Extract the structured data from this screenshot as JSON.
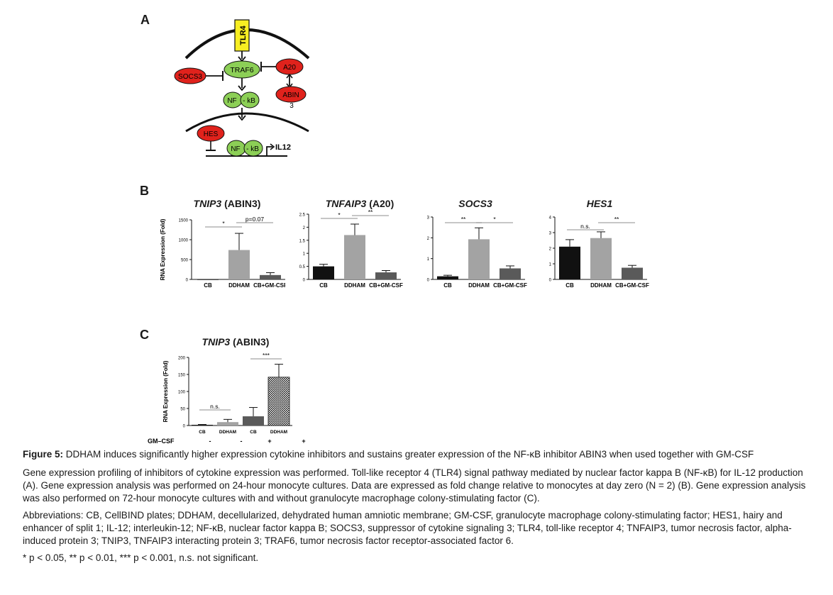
{
  "panels": {
    "a": "A",
    "b": "B",
    "c": "C"
  },
  "pathway": {
    "tlr4": "TLR4",
    "traf6": "TRAF6",
    "socs3": "SOCS3",
    "a20": "A20",
    "abin": "ABIN",
    "abin_num": "3",
    "nfkb_left": "NF",
    "nfkb_right": "- kB",
    "hes": "HES",
    "il12": "IL12"
  },
  "colors": {
    "receptor": "#f7ee22",
    "activator": "#8ccf56",
    "inhibitor": "#e0221c",
    "bar_black": "#111111",
    "bar_light": "#a3a3a3",
    "bar_dark": "#5a5a5a"
  },
  "chart_data": [
    {
      "type": "bar",
      "title_gene": "TNIP3",
      "title_rest": " (ABIN3)",
      "ylabel": "RNA Expression (Fold)",
      "categories": [
        "CB",
        "DDHAM",
        "CB+GM-CSF"
      ],
      "values": [
        1,
        740,
        110
      ],
      "errors": [
        0,
        420,
        60
      ],
      "colors": [
        "#111111",
        "#a3a3a3",
        "#5a5a5a"
      ],
      "ylim": [
        0,
        1500
      ],
      "yticks": [
        0,
        500,
        1000,
        1500
      ],
      "significance": [
        {
          "from": 0,
          "to": 1,
          "label": "*"
        },
        {
          "from": 1,
          "to": 2,
          "label": "p=0.07"
        }
      ]
    },
    {
      "type": "bar",
      "title_gene": "TNFAIP3",
      "title_rest": " (A20)",
      "ylabel": "",
      "categories": [
        "CB",
        "DDHAM",
        "CB+GM-CSF"
      ],
      "values": [
        0.5,
        1.7,
        0.27
      ],
      "errors": [
        0.08,
        0.42,
        0.07
      ],
      "colors": [
        "#111111",
        "#a3a3a3",
        "#5a5a5a"
      ],
      "ylim": [
        0,
        2.5
      ],
      "yticks": [
        0,
        0.5,
        1.0,
        1.5,
        2.0,
        2.5
      ],
      "significance": [
        {
          "from": 0,
          "to": 1,
          "label": "*"
        },
        {
          "from": 1,
          "to": 2,
          "label": "**"
        }
      ]
    },
    {
      "type": "bar",
      "title_gene": "SOCS3",
      "title_rest": "",
      "ylabel": "",
      "categories": [
        "CB",
        "DDHAM",
        "CB+GM-CSF"
      ],
      "values": [
        0.15,
        1.93,
        0.53
      ],
      "errors": [
        0.05,
        0.55,
        0.12
      ],
      "colors": [
        "#111111",
        "#a3a3a3",
        "#5a5a5a"
      ],
      "ylim": [
        0,
        3
      ],
      "yticks": [
        0,
        1,
        2,
        3
      ],
      "significance": [
        {
          "from": 0,
          "to": 1,
          "label": "**"
        },
        {
          "from": 1,
          "to": 2,
          "label": "*"
        }
      ]
    },
    {
      "type": "bar",
      "title_gene": "HES1",
      "title_rest": "",
      "ylabel": "",
      "categories": [
        "CB",
        "DDHAM",
        "CB+GM-CSF"
      ],
      "values": [
        2.1,
        2.65,
        0.75
      ],
      "errors": [
        0.45,
        0.4,
        0.15
      ],
      "colors": [
        "#111111",
        "#a3a3a3",
        "#5a5a5a"
      ],
      "ylim": [
        0,
        4
      ],
      "yticks": [
        0,
        1,
        2,
        3,
        4
      ],
      "significance": [
        {
          "from": 0,
          "to": 1,
          "label": "n.s."
        },
        {
          "from": 1,
          "to": 2,
          "label": "**"
        }
      ]
    },
    {
      "type": "bar",
      "title_gene": "TNIP3",
      "title_rest": " (ABIN3)",
      "ylabel": "RNA Expression (Fold)",
      "categories": [
        "CB",
        "DDHAM",
        "CB",
        "DDHAM"
      ],
      "gm_csf_label": "GM–CSF",
      "gm_csf": [
        "-",
        "-",
        "+",
        "+"
      ],
      "values": [
        2,
        10,
        27,
        142
      ],
      "errors": [
        1,
        8,
        26,
        38
      ],
      "colors": [
        "#111111",
        "#a3a3a3",
        "#5a5a5a",
        "hatch"
      ],
      "ylim": [
        0,
        200
      ],
      "yticks": [
        0,
        50,
        100,
        150,
        200
      ],
      "significance": [
        {
          "from": 0,
          "to": 1,
          "label": "n.s."
        },
        {
          "from": 2,
          "to": 3,
          "label": "***"
        }
      ]
    }
  ],
  "caption": {
    "figure_label": "Figure 5:",
    "title": " DDHAM induces significantly higher expression cytokine inhibitors and sustains greater expression of the NF-κB inhibitor ABIN3 when used together with GM-CSF",
    "para1": "Gene expression profiling of inhibitors of cytokine expression was performed. Toll-like receptor 4 (TLR4) signal pathway mediated by nuclear factor kappa B (NF-κB) for IL-12 production (A). Gene expression analysis was performed on 24-hour monocyte cultures. Data are expressed as fold change relative to monocytes at day zero (N = 2) (B). Gene expression analysis was also performed on 72-hour monocyte cultures with and without granulocyte macrophage colony-stimulating factor (C).",
    "para2": "Abbreviations: CB, CellBIND plates; DDHAM, decellularized, dehydrated human amniotic membrane; GM-CSF, granulocyte macrophage colony-stimulating factor; HES1, hairy and enhancer of split 1; IL-12; interleukin-12; NF-κB, nuclear factor kappa B; SOCS3, suppressor of cytokine signaling 3; TLR4, toll-like receptor 4; TNFAIP3, tumor necrosis factor, alpha-induced protein 3; TNIP3, TNFAIP3 interacting protein 3; TRAF6, tumor necrosis factor receptor-associated factor 6.",
    "para3": "* p < 0.05, ** p < 0.01, *** p < 0.001, n.s. not significant."
  }
}
